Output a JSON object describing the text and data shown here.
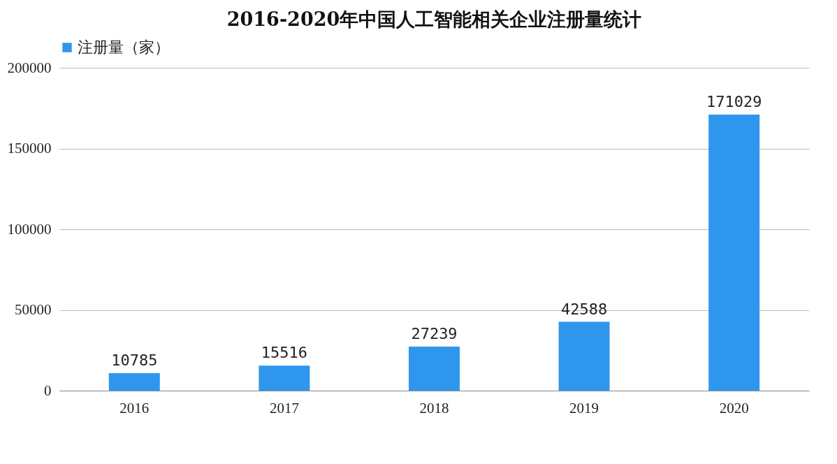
{
  "chart_data": {
    "type": "bar",
    "title": "2016-2020年中国人工智能相关企业注册量统计",
    "categories": [
      "2016",
      "2017",
      "2018",
      "2019",
      "2020"
    ],
    "series": [
      {
        "name": "注册量（家）",
        "color": "#2f96ee",
        "values": [
          10785,
          15516,
          27239,
          42588,
          171029
        ]
      }
    ],
    "ylim": [
      0,
      200000
    ],
    "yticks": [
      0,
      50000,
      100000,
      150000,
      200000
    ],
    "grid": "y",
    "legend": "top",
    "data_labels": true
  }
}
